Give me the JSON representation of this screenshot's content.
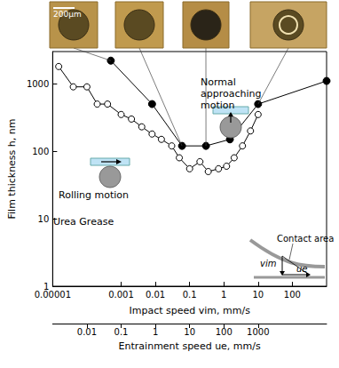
{
  "chart_data": {
    "type": "line",
    "log": true,
    "grid": false,
    "tick_labels": true,
    "x_label": "Impact speed vim, mm/s",
    "y_label": "Film thickness h, nm",
    "xlim": [
      1e-05,
      1000
    ],
    "xticks": [
      1e-05,
      0.001,
      0.01,
      0.1,
      1,
      10,
      100
    ],
    "ylim": [
      1,
      3000
    ],
    "yticks": [
      1,
      10,
      100,
      1000
    ],
    "x2_label": "Entrainment speed ue, mm/s",
    "x2lim": [
      0.001,
      100000
    ],
    "x2ticks": [
      0.01,
      0.1,
      1,
      10,
      100,
      1000
    ],
    "series": [
      {
        "name": "Rolling motion",
        "marker": "open_circle",
        "color": "#000000",
        "line_style": "solid",
        "x": [
          1.5e-05,
          4e-05,
          0.0001,
          0.0002,
          0.0004,
          0.001,
          0.002,
          0.004,
          0.008,
          0.015,
          0.03,
          0.05,
          0.1,
          0.2,
          0.35,
          0.7,
          1.2,
          2,
          3.5,
          6,
          10
        ],
        "values": [
          1800,
          900,
          900,
          500,
          500,
          350,
          300,
          230,
          180,
          150,
          120,
          80,
          55,
          70,
          50,
          55,
          60,
          80,
          120,
          200,
          350
        ]
      },
      {
        "name": "Normal approaching motion",
        "marker": "filled_circle",
        "color": "#000000",
        "line_style": "solid",
        "x": [
          0.0005,
          0.008,
          0.06,
          0.3,
          1.5,
          10,
          1000
        ],
        "values": [
          2200,
          500,
          120,
          120,
          150,
          500,
          1100
        ]
      }
    ],
    "annotations": [
      "Urea Grease",
      "Contact area",
      "vim",
      "ue",
      "200μm"
    ]
  }
}
